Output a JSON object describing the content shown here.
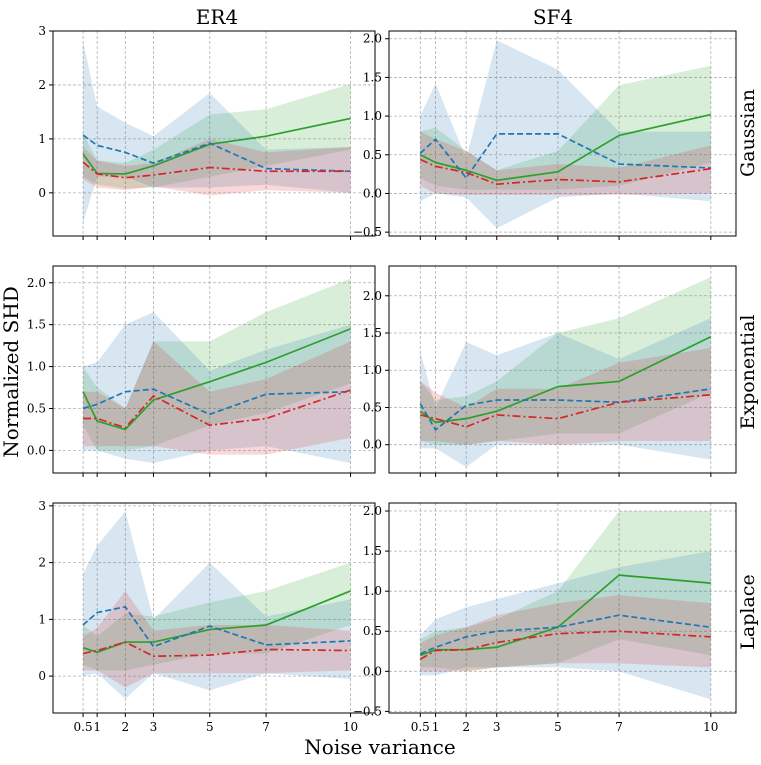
{
  "chart_data": {
    "type": "line",
    "figure": {
      "xlabel": "Noise variance",
      "ylabel": "Normalized SHD",
      "columns": [
        "ER4",
        "SF4"
      ],
      "rows": [
        "Gaussian",
        "Exponential",
        "Laplace"
      ]
    },
    "x": [
      0.5,
      1,
      2,
      3,
      5,
      7,
      10
    ],
    "xticks": [
      0.5,
      1,
      2,
      3,
      5,
      7,
      10
    ],
    "xtick_labels": [
      "0.5",
      "1",
      "2",
      "3",
      "5",
      "7",
      "10"
    ],
    "colors": {
      "green": "#2ca02c",
      "blue": "#1f77b4",
      "red": "#d62728"
    },
    "series_styles": [
      {
        "key": "green",
        "dash": "solid"
      },
      {
        "key": "blue",
        "dash": "dashed"
      },
      {
        "key": "red",
        "dash": "dashdot"
      }
    ],
    "panels": [
      {
        "column": "ER4",
        "row": "Gaussian",
        "ylim": [
          -0.8,
          3.0
        ],
        "yticks": [
          0,
          1,
          2,
          3
        ],
        "series": [
          {
            "color": "green",
            "values": [
              0.72,
              0.36,
              0.35,
              0.5,
              0.9,
              1.05,
              1.38
            ],
            "lower": [
              0.3,
              0.15,
              0.08,
              0.1,
              0.3,
              0.5,
              0.8
            ],
            "upper": [
              1.1,
              0.6,
              0.55,
              0.8,
              1.45,
              1.55,
              2.02
            ]
          },
          {
            "color": "blue",
            "values": [
              1.07,
              0.88,
              0.75,
              0.55,
              0.92,
              0.45,
              0.4
            ],
            "lower": [
              -0.55,
              0.3,
              0.3,
              0.1,
              0.1,
              0.15,
              0.0
            ],
            "upper": [
              2.8,
              1.6,
              1.3,
              1.05,
              1.85,
              0.8,
              0.85
            ]
          },
          {
            "color": "red",
            "values": [
              0.57,
              0.35,
              0.28,
              0.33,
              0.47,
              0.4,
              0.4
            ],
            "lower": [
              0.25,
              0.1,
              0.05,
              0.12,
              -0.05,
              0.05,
              0.0
            ],
            "upper": [
              0.85,
              0.6,
              0.5,
              0.55,
              1.0,
              0.75,
              0.85
            ]
          }
        ]
      },
      {
        "column": "SF4",
        "row": "Gaussian",
        "ylim": [
          -0.55,
          2.1
        ],
        "yticks": [
          -0.5,
          0.0,
          0.5,
          1.0,
          1.5,
          2.0
        ],
        "ytick_labels": [
          "−0.5",
          "0.0",
          "0.5",
          "1.0",
          "1.5",
          "2.0"
        ],
        "series": [
          {
            "color": "green",
            "values": [
              0.5,
              0.4,
              0.3,
              0.17,
              0.28,
              0.75,
              1.02
            ],
            "lower": [
              0.2,
              0.1,
              0.05,
              0.05,
              0.05,
              0.1,
              0.4
            ],
            "upper": [
              0.8,
              0.85,
              0.55,
              0.3,
              0.55,
              1.4,
              1.65
            ]
          },
          {
            "color": "blue",
            "values": [
              0.52,
              0.7,
              0.2,
              0.77,
              0.77,
              0.38,
              0.33
            ],
            "lower": [
              -0.1,
              0.0,
              -0.05,
              -0.45,
              -0.05,
              0.0,
              -0.1
            ],
            "upper": [
              1.0,
              1.42,
              0.45,
              1.98,
              1.6,
              0.8,
              0.8
            ]
          },
          {
            "color": "red",
            "values": [
              0.44,
              0.35,
              0.27,
              0.12,
              0.18,
              0.15,
              0.32
            ],
            "lower": [
              0.1,
              0.0,
              -0.02,
              -0.02,
              -0.02,
              -0.02,
              0.0
            ],
            "upper": [
              0.8,
              0.7,
              0.55,
              0.3,
              0.38,
              0.33,
              0.62
            ]
          }
        ]
      },
      {
        "column": "ER4",
        "row": "Exponential",
        "ylim": [
          -0.27,
          2.2
        ],
        "yticks": [
          0.0,
          0.5,
          1.0,
          1.5,
          2.0
        ],
        "ytick_labels": [
          "0.0",
          "0.5",
          "1.0",
          "1.5",
          "2.0"
        ],
        "series": [
          {
            "color": "green",
            "values": [
              0.7,
              0.35,
              0.25,
              0.6,
              0.82,
              1.05,
              1.45
            ],
            "lower": [
              0.3,
              0.0,
              0.0,
              0.05,
              0.3,
              0.45,
              0.8
            ],
            "upper": [
              1.0,
              0.75,
              0.5,
              1.3,
              1.3,
              1.65,
              2.05
            ]
          },
          {
            "color": "blue",
            "values": [
              0.5,
              0.55,
              0.7,
              0.73,
              0.43,
              0.67,
              0.7
            ],
            "lower": [
              0.0,
              0.0,
              -0.1,
              -0.15,
              0.0,
              0.05,
              -0.15
            ],
            "upper": [
              1.0,
              1.05,
              1.5,
              1.65,
              0.95,
              1.2,
              1.5
            ]
          },
          {
            "color": "red",
            "values": [
              0.38,
              0.38,
              0.27,
              0.65,
              0.3,
              0.38,
              0.72
            ],
            "lower": [
              0.05,
              0.05,
              0.05,
              0.05,
              -0.05,
              -0.05,
              0.15
            ],
            "upper": [
              0.7,
              0.7,
              0.5,
              1.3,
              0.7,
              0.85,
              1.3
            ]
          }
        ]
      },
      {
        "column": "SF4",
        "row": "Exponential",
        "ylim": [
          -0.38,
          2.4
        ],
        "yticks": [
          0.0,
          0.5,
          1.0,
          1.5,
          2.0
        ],
        "ytick_labels": [
          "0.0",
          "0.5",
          "1.0",
          "1.5",
          "2.0"
        ],
        "series": [
          {
            "color": "green",
            "values": [
              0.45,
              0.3,
              0.35,
              0.45,
              0.78,
              0.85,
              1.45
            ],
            "lower": [
              0.05,
              0.0,
              0.0,
              0.05,
              0.15,
              0.15,
              0.7
            ],
            "upper": [
              0.85,
              0.6,
              0.65,
              0.85,
              1.5,
              1.7,
              2.25
            ]
          },
          {
            "color": "blue",
            "values": [
              0.55,
              0.2,
              0.53,
              0.6,
              0.6,
              0.57,
              0.75
            ],
            "lower": [
              -0.05,
              -0.05,
              -0.3,
              0.0,
              0.0,
              0.0,
              -0.2
            ],
            "upper": [
              1.25,
              0.5,
              1.38,
              1.2,
              1.5,
              1.15,
              1.7
            ]
          },
          {
            "color": "red",
            "values": [
              0.4,
              0.35,
              0.24,
              0.4,
              0.35,
              0.57,
              0.67
            ],
            "lower": [
              0.05,
              0.05,
              0.0,
              0.05,
              0.0,
              0.05,
              0.05
            ],
            "upper": [
              0.85,
              0.7,
              0.5,
              0.75,
              0.75,
              1.1,
              1.3
            ]
          }
        ]
      },
      {
        "column": "ER4",
        "row": "Laplace",
        "ylim": [
          -0.65,
          3.05
        ],
        "yticks": [
          0,
          1,
          2,
          3
        ],
        "series": [
          {
            "color": "green",
            "values": [
              0.5,
              0.42,
              0.6,
              0.6,
              0.82,
              0.9,
              1.5
            ],
            "lower": [
              0.2,
              0.1,
              0.1,
              0.2,
              0.4,
              0.4,
              0.9
            ],
            "upper": [
              0.9,
              0.7,
              1.1,
              1.05,
              1.3,
              1.5,
              2.0
            ]
          },
          {
            "color": "blue",
            "values": [
              0.9,
              1.12,
              1.22,
              0.52,
              0.88,
              0.55,
              0.62
            ],
            "lower": [
              0.0,
              0.05,
              -0.4,
              0.05,
              -0.25,
              0.05,
              -0.05
            ],
            "upper": [
              1.8,
              2.3,
              2.9,
              1.0,
              2.0,
              1.05,
              1.35
            ]
          },
          {
            "color": "red",
            "values": [
              0.4,
              0.45,
              0.6,
              0.35,
              0.37,
              0.47,
              0.45
            ],
            "lower": [
              0.1,
              0.1,
              -0.2,
              0.05,
              0.05,
              0.05,
              0.1
            ],
            "upper": [
              0.7,
              0.85,
              1.5,
              0.8,
              0.9,
              0.9,
              0.8
            ]
          }
        ]
      },
      {
        "column": "SF4",
        "row": "Laplace",
        "ylim": [
          -0.52,
          2.1
        ],
        "yticks": [
          -0.5,
          0.0,
          0.5,
          1.0,
          1.5,
          2.0
        ],
        "ytick_labels": [
          "−0.5",
          "0.0",
          "0.5",
          "1.0",
          "1.5",
          "2.0"
        ],
        "series": [
          {
            "color": "green",
            "values": [
              0.2,
              0.27,
              0.27,
              0.3,
              0.55,
              1.2,
              1.1
            ],
            "lower": [
              0.05,
              0.05,
              0.0,
              0.05,
              0.1,
              0.4,
              0.2
            ],
            "upper": [
              0.4,
              0.5,
              0.55,
              0.65,
              1.0,
              2.0,
              2.0
            ]
          },
          {
            "color": "blue",
            "values": [
              0.22,
              0.3,
              0.43,
              0.5,
              0.55,
              0.7,
              0.55
            ],
            "lower": [
              -0.05,
              -0.05,
              0.05,
              0.05,
              0.05,
              0.0,
              -0.35
            ],
            "upper": [
              0.45,
              0.65,
              0.8,
              0.9,
              1.1,
              1.3,
              1.5
            ]
          },
          {
            "color": "red",
            "values": [
              0.15,
              0.26,
              0.27,
              0.36,
              0.47,
              0.5,
              0.43
            ],
            "lower": [
              0.0,
              0.0,
              0.0,
              0.05,
              0.1,
              0.1,
              0.05
            ],
            "upper": [
              0.35,
              0.45,
              0.55,
              0.7,
              0.85,
              0.95,
              0.85
            ]
          }
        ]
      }
    ]
  }
}
